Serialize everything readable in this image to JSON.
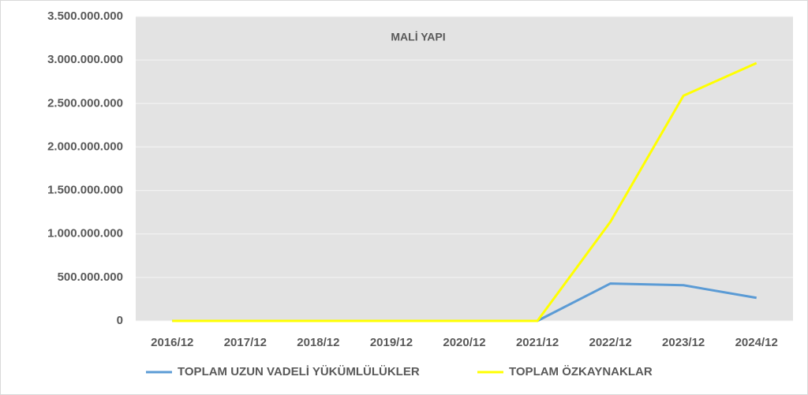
{
  "chart_data": {
    "type": "line",
    "title": "MALİ YAPI",
    "categories": [
      "2016/12",
      "2017/12",
      "2018/12",
      "2019/12",
      "2020/12",
      "2021/12",
      "2022/12",
      "2023/12",
      "2024/12"
    ],
    "series": [
      {
        "name": "TOPLAM UZUN VADELİ YÜKÜMLÜLÜKLER",
        "color": "#5b9bd5",
        "values": [
          0,
          0,
          0,
          0,
          0,
          0,
          430000000,
          410000000,
          265000000
        ]
      },
      {
        "name": "TOPLAM ÖZKAYNAKLAR",
        "color": "#ffff00",
        "values": [
          0,
          0,
          0,
          0,
          0,
          0,
          1140000000,
          2590000000,
          2965000000
        ]
      }
    ],
    "ylim": [
      0,
      3500000000
    ],
    "yticks": [
      0,
      {
        "value": 500000000,
        "label": "500.000.000"
      },
      {
        "value": 1000000000,
        "label": "1.000.000.000"
      },
      {
        "value": 1500000000,
        "label": "1.500.000.000"
      },
      {
        "value": 2000000000,
        "label": "2.000.000.000"
      },
      {
        "value": 2500000000,
        "label": "2.500.000.000"
      },
      {
        "value": 3000000000,
        "label": "3.000.000.000"
      },
      {
        "value": 3500000000,
        "label": "3.500.000.000"
      }
    ],
    "grid": true,
    "legend": "bottom"
  }
}
